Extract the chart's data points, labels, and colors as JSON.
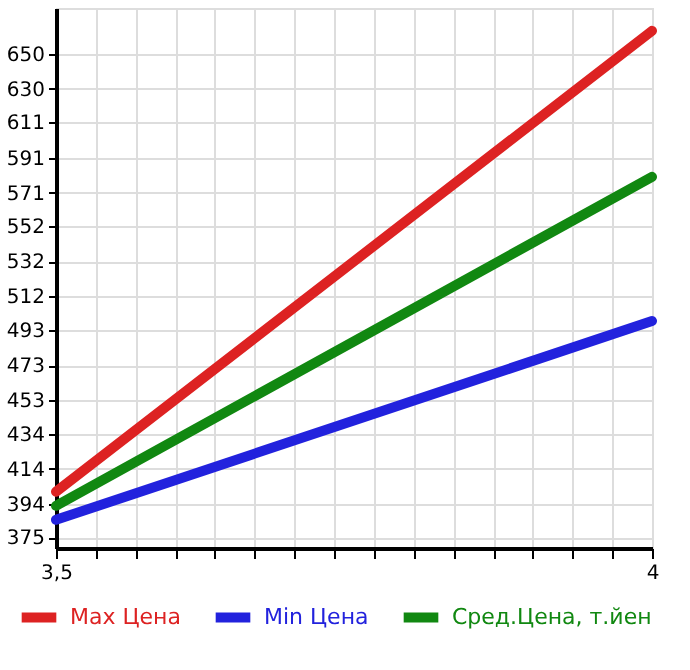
{
  "chart_data": {
    "type": "line",
    "x": [
      3.5,
      4
    ],
    "series": [
      {
        "name": "Max Цена",
        "color": "#dd2222",
        "values": [
          401,
          663
        ]
      },
      {
        "name": "Min Цена",
        "color": "#2222dd",
        "values": [
          385,
          498
        ]
      },
      {
        "name": "Сред.Цена, т.йен",
        "color": "#118811",
        "values": [
          393,
          580
        ]
      }
    ],
    "xlim": [
      3.5,
      4
    ],
    "xticks": [
      {
        "value": 3.5,
        "label": "3,5"
      },
      {
        "value": 3.5333,
        "label": null
      },
      {
        "value": 3.5667,
        "label": null
      },
      {
        "value": 3.6,
        "label": null
      },
      {
        "value": 3.6333,
        "label": null
      },
      {
        "value": 3.6667,
        "label": null
      },
      {
        "value": 3.7,
        "label": null
      },
      {
        "value": 3.7333,
        "label": null
      },
      {
        "value": 3.7667,
        "label": null
      },
      {
        "value": 3.8,
        "label": null
      },
      {
        "value": 3.8333,
        "label": null
      },
      {
        "value": 3.8667,
        "label": null
      },
      {
        "value": 3.9,
        "label": null
      },
      {
        "value": 3.9333,
        "label": null
      },
      {
        "value": 3.9667,
        "label": null
      },
      {
        "value": 4,
        "label": "4"
      }
    ],
    "ylim": [
      369,
      676
    ],
    "yticks": [
      375,
      394,
      414,
      434,
      453,
      473,
      493,
      512,
      532,
      552,
      571,
      591,
      611,
      630,
      650
    ],
    "grid": true,
    "legend": "bottom",
    "marker": "none",
    "line_style": "solid"
  }
}
